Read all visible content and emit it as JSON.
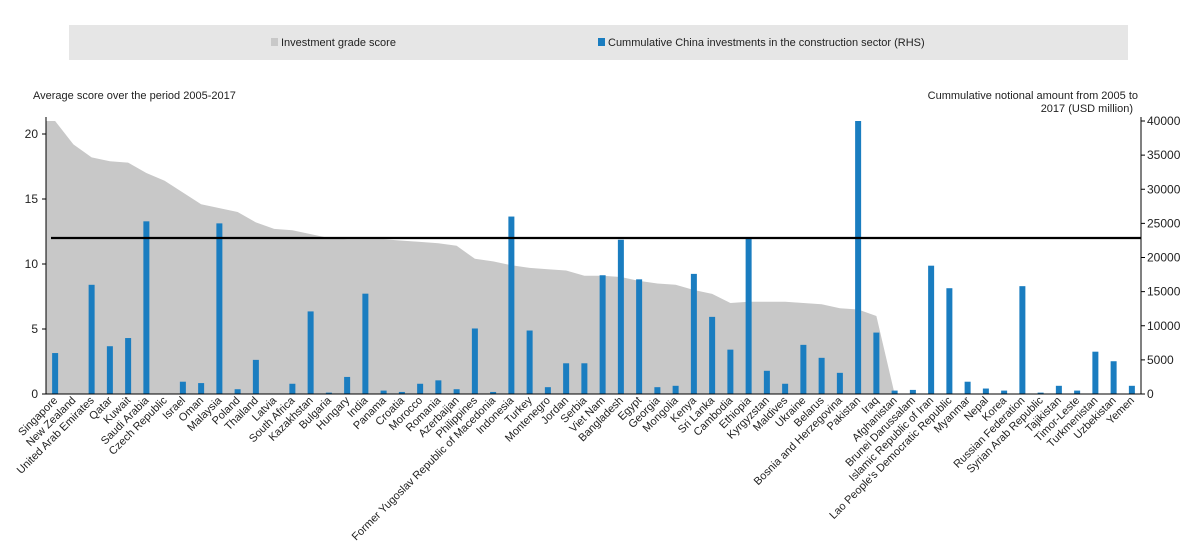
{
  "chart_data": {
    "type": "bar",
    "legend": {
      "placement": "top",
      "items": [
        {
          "label": "Investment grade score",
          "color": "#c8c8c8",
          "kind": "area"
        },
        {
          "label": "Cummulative China investments in the construction sector (RHS)",
          "color": "#1a7dc0",
          "kind": "bar"
        }
      ]
    },
    "left_axis": {
      "label": "Average score  over the period 2005-2017",
      "ylim": [
        0,
        21
      ],
      "ticks": [
        0,
        5,
        10,
        15,
        20
      ]
    },
    "right_axis": {
      "label_lines": [
        "Cummulative notional amount  from 2005 to",
        "2017 (USD million)"
      ],
      "ylim": [
        0,
        40000
      ],
      "ticks": [
        0,
        5000,
        10000,
        15000,
        20000,
        25000,
        30000,
        35000,
        40000
      ]
    },
    "reference_line": {
      "axis": "left",
      "value": 12
    },
    "categories": [
      "Singapore",
      "New Zealand",
      "United Arab Emirates",
      "Qatar",
      "Kuwait",
      "Saudi Arabia",
      "Czech Republic",
      "Israel",
      "Oman",
      "Malaysia",
      "Poland",
      "Thailand",
      "Latvia",
      "South Africa",
      "Kazakhstan",
      "Bulgaria",
      "Hungary",
      "India",
      "Panama",
      "Croatia",
      "Morocco",
      "Romania",
      "Azerbaijan",
      "Philippines",
      "Former Yugoslav Republic of Macedonia",
      "Indonesia",
      "Turkey",
      "Montenegro",
      "Jordan",
      "Serbia",
      "Viet Nam",
      "Bangladesh",
      "Egypt",
      "Georgia",
      "Mongolia",
      "Kenya",
      "Sri Lanka",
      "Cambodia",
      "Ethiopia",
      "Kyrgyzstan",
      "Maldives",
      "Ukraine",
      "Belarus",
      "Bosnia and Herzegovina",
      "Pakistan",
      "Iraq",
      "Afghanistan",
      "Brunei Darussalam",
      "Islamic Republic of Iran",
      "Lao People's Democratic Republic",
      "Myanmar",
      "Nepal",
      "Korea",
      "Russian Federation",
      "Syrian Arab Republic",
      "Tajikistan",
      "Timor-Leste",
      "Turkmenistan",
      "Uzbekistan",
      "Yemen"
    ],
    "series": [
      {
        "name": "Investment grade score",
        "type": "area",
        "axis": "left",
        "color": "#c8c8c8",
        "values": [
          21,
          19.2,
          18.2,
          17.9,
          17.8,
          17.0,
          16.4,
          15.5,
          14.6,
          14.3,
          14.0,
          13.2,
          12.7,
          12.6,
          12.3,
          12.0,
          11.9,
          11.9,
          11.9,
          11.8,
          11.7,
          11.6,
          11.4,
          10.4,
          10.2,
          9.9,
          9.7,
          9.6,
          9.5,
          9.1,
          9.1,
          9.0,
          8.7,
          8.5,
          8.4,
          8.0,
          7.7,
          7.0,
          7.1,
          7.1,
          7.1,
          7.0,
          6.9,
          6.6,
          6.5,
          6.0,
          0,
          0,
          0,
          0,
          0,
          0,
          0,
          0,
          0,
          0,
          0,
          0,
          0,
          0
        ]
      },
      {
        "name": "Cummulative China investments in the construction sector (RHS)",
        "type": "bar",
        "axis": "right",
        "color": "#1a7dc0",
        "values": [
          6000,
          0,
          16000,
          7000,
          8200,
          25300,
          0,
          1800,
          1600,
          25000,
          700,
          5000,
          0,
          1500,
          12100,
          200,
          2500,
          14700,
          500,
          300,
          1500,
          2000,
          700,
          9600,
          300,
          26000,
          9300,
          1000,
          4500,
          4500,
          17400,
          22600,
          16800,
          1000,
          1200,
          17600,
          11300,
          6500,
          22900,
          3400,
          1500,
          7200,
          5300,
          3100,
          40000,
          9000,
          500,
          600,
          18800,
          15500,
          1800,
          800,
          500,
          15800,
          200,
          1200,
          500,
          6200,
          4800,
          1200
        ]
      }
    ]
  }
}
